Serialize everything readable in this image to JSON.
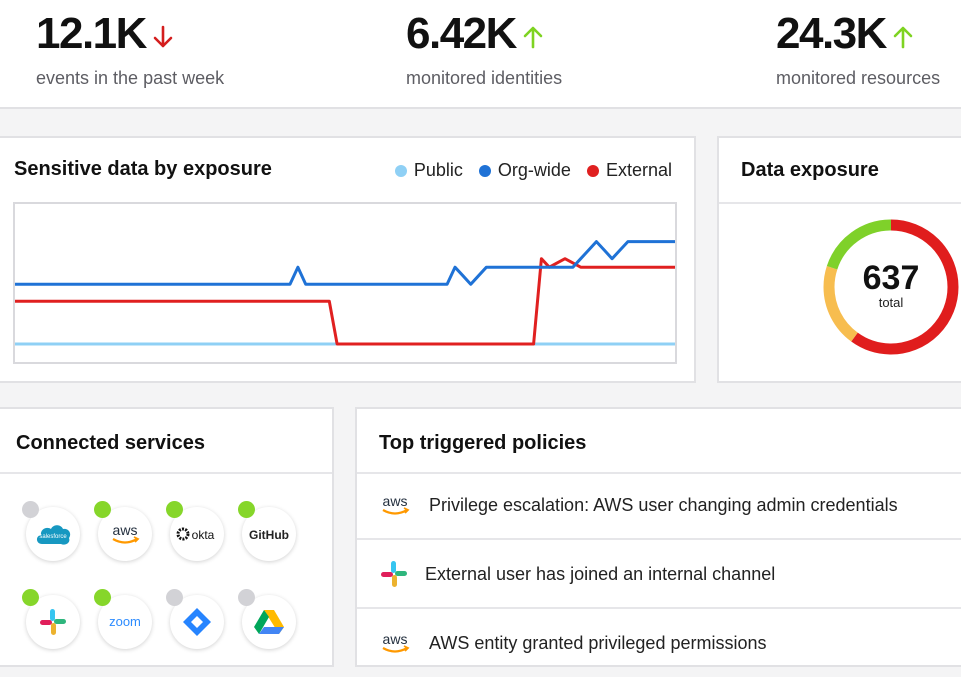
{
  "stats": [
    {
      "value": "12.1K",
      "label": "events in the past week",
      "trend": "down",
      "trend_color": "#d41e1e"
    },
    {
      "value": "6.42K",
      "label": "monitored identities",
      "trend": "up",
      "trend_color": "#7ed321"
    },
    {
      "value": "24.3K",
      "label": "monitored resources",
      "trend": "up",
      "trend_color": "#7ed321"
    }
  ],
  "exposure_chart": {
    "title": "Sensitive data by exposure",
    "legend": [
      {
        "name": "Public",
        "color": "#8fd0f5"
      },
      {
        "name": "Org-wide",
        "color": "#1f72d6"
      },
      {
        "name": "External",
        "color": "#e02020"
      }
    ]
  },
  "chart_data": {
    "type": "line",
    "title": "Sensitive data by exposure",
    "xlabel": "",
    "ylabel": "",
    "legend": "top-right",
    "grid": false,
    "series": [
      {
        "name": "Public",
        "color": "#8fd0f5",
        "values": [
          0,
          0,
          0,
          0,
          0,
          0,
          0,
          0,
          0,
          0,
          0,
          0,
          0,
          0,
          0,
          0,
          0,
          0,
          0,
          0,
          0,
          0,
          0,
          0,
          0,
          0,
          0,
          0,
          0,
          0,
          0,
          0,
          0,
          0,
          0,
          0,
          0,
          0,
          0,
          0,
          0,
          0,
          0,
          0,
          0,
          0,
          0,
          0,
          0,
          0,
          0,
          0,
          0,
          0,
          0,
          0,
          0,
          0,
          0,
          0,
          0,
          0,
          0,
          0,
          0,
          0,
          0,
          0,
          0,
          0,
          0,
          0,
          0,
          0,
          0,
          0,
          0,
          0,
          0,
          0,
          0,
          0,
          0,
          0,
          0
        ]
      },
      {
        "name": "Org-wide",
        "color": "#1f72d6",
        "values": [
          14,
          14,
          14,
          14,
          14,
          14,
          14,
          14,
          14,
          14,
          14,
          14,
          14,
          14,
          14,
          14,
          14,
          14,
          14,
          14,
          14,
          14,
          14,
          14,
          14,
          14,
          14,
          14,
          14,
          14,
          14,
          14,
          14,
          14,
          14,
          14,
          18,
          14,
          14,
          14,
          14,
          14,
          14,
          14,
          14,
          14,
          14,
          14,
          14,
          14,
          14,
          14,
          14,
          14,
          14,
          14,
          18,
          16,
          14,
          16,
          18,
          18,
          18,
          18,
          18,
          18,
          18,
          18,
          18,
          18,
          18,
          18,
          20,
          22,
          24,
          22,
          20,
          22,
          24,
          24,
          24,
          24,
          24,
          24,
          24
        ]
      },
      {
        "name": "External",
        "color": "#e02020",
        "values": [
          10,
          10,
          10,
          10,
          10,
          10,
          10,
          10,
          10,
          10,
          10,
          10,
          10,
          10,
          10,
          10,
          10,
          10,
          10,
          10,
          10,
          10,
          10,
          10,
          10,
          10,
          10,
          10,
          10,
          10,
          10,
          10,
          10,
          10,
          10,
          10,
          10,
          10,
          10,
          10,
          10,
          0,
          0,
          0,
          0,
          0,
          0,
          0,
          0,
          0,
          0,
          0,
          0,
          0,
          0,
          0,
          0,
          0,
          0,
          0,
          0,
          0,
          0,
          0,
          0,
          0,
          0,
          20,
          18,
          19,
          20,
          19,
          18,
          18,
          18,
          18,
          18,
          18,
          18,
          18,
          18,
          18,
          18,
          18,
          18
        ]
      }
    ],
    "ylim": [
      0,
      30
    ]
  },
  "donut": {
    "title": "Data exposure",
    "total": "637",
    "total_label": "total",
    "segments": [
      {
        "name": "External",
        "fraction": 0.6,
        "color": "#e01d1d"
      },
      {
        "name": "Org-wide",
        "fraction": 0.2,
        "color": "#f7bd4f"
      },
      {
        "name": "Public",
        "fraction": 0.2,
        "color": "#7fd12a"
      }
    ]
  },
  "services": {
    "title": "Connected services",
    "items": [
      {
        "name": "salesforce",
        "status": "inactive",
        "status_color": "#d2d2d6"
      },
      {
        "name": "aws",
        "status": "active",
        "status_color": "#86d62a"
      },
      {
        "name": "okta",
        "status": "active",
        "status_color": "#86d62a"
      },
      {
        "name": "GitHub",
        "status": "active",
        "status_color": "#86d62a"
      },
      {
        "name": "slack",
        "status": "active",
        "status_color": "#86d62a"
      },
      {
        "name": "zoom",
        "status": "active",
        "status_color": "#86d62a"
      },
      {
        "name": "jira",
        "status": "inactive",
        "status_color": "#d2d2d6"
      },
      {
        "name": "google-drive",
        "status": "inactive",
        "status_color": "#d2d2d6"
      }
    ]
  },
  "policies": {
    "title": "Top triggered policies",
    "items": [
      {
        "icon": "aws",
        "text": "Privilege escalation: AWS user changing admin credentials"
      },
      {
        "icon": "slack",
        "text": "External user has joined an internal channel"
      },
      {
        "icon": "aws",
        "text": "AWS entity granted privileged permissions"
      }
    ]
  }
}
